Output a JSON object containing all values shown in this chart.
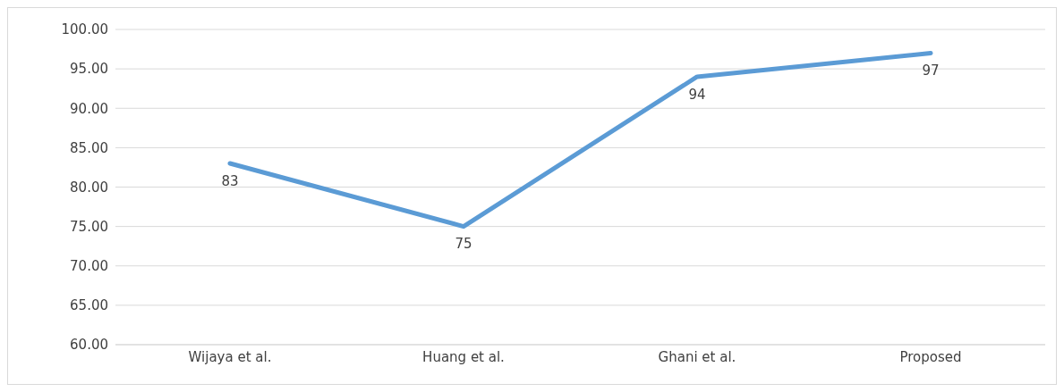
{
  "chart_data": {
    "type": "line",
    "categories": [
      "Wijaya et al.",
      "Huang et al.",
      "Ghani et al.",
      "Proposed"
    ],
    "series": [
      {
        "color": "#5b9bd5",
        "values": [
          83,
          75,
          94,
          97
        ]
      }
    ],
    "ylim": [
      60,
      100
    ],
    "yticks": [
      {
        "value": 60,
        "label": "60.00"
      },
      {
        "value": 65,
        "label": "65.00"
      },
      {
        "value": 70,
        "label": "70.00"
      },
      {
        "value": 75,
        "label": "75.00"
      },
      {
        "value": 80,
        "label": "80.00"
      },
      {
        "value": 85,
        "label": "85.00"
      },
      {
        "value": 90,
        "label": "90.00"
      },
      {
        "value": 95,
        "label": "95.00"
      },
      {
        "value": 100,
        "label": "100.00"
      }
    ],
    "grid": "y",
    "data_labels": true,
    "marker": "none",
    "line_style": "solid"
  }
}
